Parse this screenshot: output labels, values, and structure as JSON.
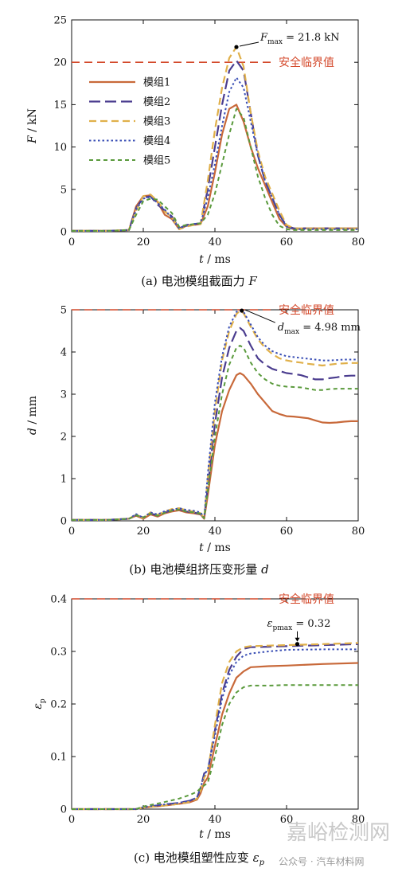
{
  "colors": {
    "module1": "#c8693a",
    "module2": "#4b3d8f",
    "module3": "#e0b04a",
    "module4": "#3a4fb5",
    "module5": "#5a9a3c",
    "safety": "#d44a2c",
    "axis": "#111111"
  },
  "safety_label": "安全临界值",
  "watermark": {
    "big": "嘉峪检测网",
    "small": "公众号 · 汽车材料网"
  },
  "chart_data": [
    {
      "type": "line",
      "caption": "(a) 电池模组截面力 F",
      "xlabel": "t / ms",
      "ylabel": "F / kN",
      "xlim": [
        0,
        80
      ],
      "ylim": [
        0,
        25
      ],
      "xticks": [
        0,
        20,
        40,
        60,
        80
      ],
      "yticks": [
        0,
        5,
        10,
        15,
        20,
        25
      ],
      "safety_threshold": 20,
      "legend_position": "left",
      "annotation": {
        "label": "F",
        "sub": "max",
        "text": "= 21.8 kN",
        "x": 46,
        "y": 21.8
      },
      "series": [
        {
          "name": "模组1",
          "style": "solid",
          "x": [
            0,
            10,
            16,
            18,
            20,
            22,
            24,
            26,
            28,
            30,
            32,
            34,
            36,
            38,
            40,
            42,
            44,
            46,
            48,
            50,
            52,
            54,
            56,
            58,
            60,
            62,
            65,
            70,
            75,
            80
          ],
          "y": [
            0.1,
            0.1,
            0.2,
            3.0,
            4.2,
            4.3,
            3.5,
            2.0,
            1.5,
            0.3,
            0.7,
            0.8,
            0.9,
            3.0,
            7.0,
            11.5,
            14.5,
            15.0,
            13.0,
            10.0,
            7.5,
            5.5,
            3.5,
            1.5,
            0.6,
            0.3,
            0.4,
            0.4,
            0.4,
            0.4
          ]
        },
        {
          "name": "模组2",
          "style": "longdash",
          "x": [
            0,
            10,
            16,
            18,
            20,
            22,
            24,
            26,
            28,
            30,
            32,
            34,
            36,
            38,
            40,
            42,
            44,
            46,
            48,
            50,
            52,
            54,
            56,
            58,
            60,
            62,
            65,
            70,
            75,
            80
          ],
          "y": [
            0.1,
            0.1,
            0.2,
            2.8,
            4.0,
            4.2,
            3.2,
            2.5,
            1.8,
            0.4,
            0.8,
            0.9,
            1.0,
            5.0,
            10.0,
            15.0,
            19.0,
            20.2,
            19.0,
            14.0,
            9.0,
            6.0,
            4.0,
            2.0,
            0.7,
            0.4,
            0.4,
            0.4,
            0.4,
            0.4
          ]
        },
        {
          "name": "模组3",
          "style": "dash",
          "x": [
            0,
            10,
            16,
            18,
            20,
            22,
            24,
            26,
            28,
            30,
            32,
            34,
            36,
            38,
            40,
            42,
            44,
            46,
            48,
            50,
            52,
            54,
            56,
            58,
            60,
            62,
            65,
            70,
            75,
            80
          ],
          "y": [
            0.1,
            0.1,
            0.2,
            2.5,
            4.2,
            4.4,
            3.6,
            2.4,
            1.7,
            0.3,
            0.6,
            0.8,
            0.9,
            6.0,
            12.0,
            17.0,
            20.5,
            21.8,
            19.5,
            14.0,
            9.5,
            6.5,
            4.5,
            2.5,
            0.8,
            0.4,
            0.4,
            0.4,
            0.4,
            0.4
          ]
        },
        {
          "name": "模组4",
          "style": "dot",
          "x": [
            0,
            10,
            16,
            18,
            20,
            22,
            24,
            26,
            28,
            30,
            32,
            34,
            36,
            38,
            40,
            42,
            44,
            46,
            48,
            50,
            52,
            54,
            56,
            58,
            60,
            62,
            65,
            70,
            75,
            80
          ],
          "y": [
            0.1,
            0.1,
            0.2,
            2.6,
            3.9,
            4.1,
            3.4,
            2.6,
            1.6,
            0.4,
            0.7,
            0.9,
            1.0,
            4.0,
            8.0,
            12.5,
            16.5,
            18.2,
            17.0,
            13.0,
            9.0,
            6.0,
            4.0,
            2.0,
            0.6,
            0.3,
            0.3,
            0.3,
            0.3,
            0.3
          ]
        },
        {
          "name": "模组5",
          "style": "shortdash",
          "x": [
            0,
            10,
            16,
            18,
            20,
            22,
            24,
            26,
            28,
            30,
            32,
            34,
            36,
            38,
            40,
            42,
            44,
            46,
            48,
            50,
            52,
            54,
            56,
            58,
            60,
            62,
            65,
            70,
            75,
            80
          ],
          "y": [
            0.1,
            0.1,
            0.2,
            2.0,
            3.6,
            3.9,
            3.8,
            3.0,
            2.2,
            0.6,
            0.8,
            0.9,
            1.0,
            2.0,
            4.5,
            8.0,
            11.5,
            14.5,
            13.5,
            10.0,
            6.5,
            4.0,
            2.0,
            0.7,
            0.3,
            0.2,
            0.2,
            0.2,
            0.2,
            0.2
          ]
        }
      ]
    },
    {
      "type": "line",
      "caption": "(b) 电池模组挤压变形量 d",
      "xlabel": "t / ms",
      "ylabel": "d / mm",
      "xlim": [
        0,
        80
      ],
      "ylim": [
        0,
        5
      ],
      "xticks": [
        0,
        20,
        40,
        60,
        80
      ],
      "yticks": [
        0,
        1,
        2,
        3,
        4,
        5
      ],
      "safety_threshold": 5,
      "annotation": {
        "label": "d",
        "sub": "max",
        "text": "= 4.98 mm",
        "x": 47.5,
        "y": 4.98
      },
      "series": [
        {
          "name": "模组1",
          "style": "solid",
          "x": [
            0,
            10,
            16,
            18,
            20,
            22,
            24,
            26,
            28,
            30,
            32,
            34,
            36,
            37,
            38,
            40,
            42,
            44,
            46,
            47,
            48,
            50,
            52,
            54,
            56,
            58,
            60,
            62,
            64,
            66,
            68,
            70,
            72,
            74,
            76,
            78,
            80
          ],
          "y": [
            0.02,
            0.02,
            0.05,
            0.12,
            0.05,
            0.15,
            0.1,
            0.18,
            0.22,
            0.25,
            0.2,
            0.18,
            0.15,
            0.05,
            0.6,
            1.8,
            2.6,
            3.1,
            3.45,
            3.5,
            3.45,
            3.25,
            3.0,
            2.8,
            2.6,
            2.53,
            2.48,
            2.47,
            2.45,
            2.43,
            2.38,
            2.33,
            2.32,
            2.33,
            2.35,
            2.36,
            2.36
          ]
        },
        {
          "name": "模组2",
          "style": "longdash",
          "x": [
            0,
            10,
            16,
            18,
            20,
            22,
            24,
            26,
            28,
            30,
            32,
            34,
            36,
            37,
            38,
            40,
            42,
            44,
            46,
            47,
            48,
            50,
            52,
            54,
            56,
            58,
            60,
            62,
            64,
            66,
            68,
            70,
            72,
            74,
            76,
            78,
            80
          ],
          "y": [
            0.02,
            0.02,
            0.05,
            0.14,
            0.08,
            0.18,
            0.12,
            0.2,
            0.25,
            0.28,
            0.22,
            0.2,
            0.16,
            0.06,
            0.8,
            2.3,
            3.4,
            4.1,
            4.5,
            4.57,
            4.5,
            4.15,
            3.85,
            3.7,
            3.6,
            3.55,
            3.5,
            3.48,
            3.45,
            3.4,
            3.35,
            3.35,
            3.38,
            3.4,
            3.43,
            3.44,
            3.44
          ]
        },
        {
          "name": "模组3",
          "style": "dash",
          "x": [
            0,
            10,
            16,
            18,
            20,
            22,
            24,
            26,
            28,
            30,
            32,
            34,
            36,
            37,
            38,
            40,
            42,
            44,
            46,
            47,
            48,
            50,
            52,
            54,
            56,
            58,
            60,
            62,
            64,
            66,
            68,
            70,
            72,
            74,
            76,
            78,
            80
          ],
          "y": [
            0.02,
            0.02,
            0.05,
            0.15,
            0.06,
            0.2,
            0.14,
            0.22,
            0.28,
            0.3,
            0.25,
            0.22,
            0.18,
            0.06,
            1.0,
            2.6,
            3.8,
            4.5,
            4.9,
            4.98,
            4.92,
            4.6,
            4.3,
            4.1,
            3.95,
            3.85,
            3.8,
            3.77,
            3.75,
            3.72,
            3.7,
            3.68,
            3.7,
            3.72,
            3.73,
            3.74,
            3.74
          ]
        },
        {
          "name": "模组4",
          "style": "dot",
          "x": [
            0,
            10,
            16,
            18,
            20,
            22,
            24,
            26,
            28,
            30,
            32,
            34,
            36,
            37,
            38,
            40,
            42,
            44,
            46,
            47,
            48,
            50,
            52,
            54,
            56,
            58,
            60,
            62,
            64,
            66,
            68,
            70,
            72,
            74,
            76,
            78,
            80
          ],
          "y": [
            0.02,
            0.02,
            0.05,
            0.16,
            0.07,
            0.2,
            0.15,
            0.23,
            0.26,
            0.3,
            0.26,
            0.24,
            0.2,
            0.07,
            1.1,
            2.8,
            3.9,
            4.6,
            4.95,
            4.98,
            4.95,
            4.65,
            4.35,
            4.15,
            4.02,
            3.95,
            3.9,
            3.88,
            3.86,
            3.84,
            3.82,
            3.8,
            3.8,
            3.81,
            3.82,
            3.82,
            3.82
          ]
        },
        {
          "name": "模组5",
          "style": "shortdash",
          "x": [
            0,
            10,
            16,
            18,
            20,
            22,
            24,
            26,
            28,
            30,
            32,
            34,
            36,
            37,
            38,
            40,
            42,
            44,
            46,
            47,
            48,
            50,
            52,
            54,
            56,
            58,
            60,
            62,
            64,
            66,
            68,
            70,
            72,
            74,
            76,
            78,
            80
          ],
          "y": [
            0.02,
            0.02,
            0.05,
            0.13,
            0.08,
            0.17,
            0.12,
            0.19,
            0.24,
            0.27,
            0.22,
            0.2,
            0.17,
            0.06,
            0.7,
            2.0,
            3.0,
            3.7,
            4.1,
            4.15,
            4.1,
            3.75,
            3.5,
            3.35,
            3.25,
            3.2,
            3.18,
            3.17,
            3.16,
            3.13,
            3.1,
            3.1,
            3.12,
            3.13,
            3.13,
            3.13,
            3.13
          ]
        }
      ]
    },
    {
      "type": "line",
      "caption": "(c) 电池模组塑性应变 ε",
      "caption_sub": "p",
      "xlabel": "t / ms",
      "ylabel": "ε",
      "ylabel_sub": "p",
      "xlim": [
        0,
        80
      ],
      "ylim": [
        0,
        0.4
      ],
      "xticks": [
        0,
        20,
        40,
        60,
        80
      ],
      "yticks": [
        0,
        0.1,
        0.2,
        0.3,
        0.4
      ],
      "safety_threshold": 0.4,
      "annotation": {
        "label": "ε",
        "sub": "pmax",
        "text": "= 0.32",
        "x": 63,
        "y": 0.314
      },
      "series": [
        {
          "name": "模组1",
          "style": "solid",
          "x": [
            0,
            10,
            18,
            20,
            25,
            30,
            33,
            35,
            36,
            37,
            38,
            40,
            42,
            44,
            46,
            48,
            50,
            55,
            60,
            70,
            80
          ],
          "y": [
            0,
            0,
            0,
            0.003,
            0.006,
            0.01,
            0.013,
            0.018,
            0.03,
            0.05,
            0.06,
            0.12,
            0.18,
            0.22,
            0.25,
            0.262,
            0.27,
            0.272,
            0.273,
            0.276,
            0.278
          ]
        },
        {
          "name": "模组2",
          "style": "longdash",
          "x": [
            0,
            10,
            18,
            20,
            25,
            30,
            33,
            35,
            36,
            37,
            38,
            40,
            42,
            44,
            46,
            48,
            50,
            55,
            60,
            70,
            80
          ],
          "y": [
            0,
            0,
            0,
            0.003,
            0.008,
            0.012,
            0.016,
            0.022,
            0.04,
            0.068,
            0.072,
            0.15,
            0.22,
            0.265,
            0.29,
            0.305,
            0.308,
            0.309,
            0.31,
            0.312,
            0.314
          ]
        },
        {
          "name": "模组3",
          "style": "dash",
          "x": [
            0,
            10,
            18,
            20,
            25,
            30,
            33,
            35,
            36,
            37,
            38,
            40,
            42,
            44,
            46,
            48,
            50,
            55,
            60,
            70,
            80
          ],
          "y": [
            0,
            0,
            0,
            0.003,
            0.006,
            0.01,
            0.014,
            0.02,
            0.035,
            0.06,
            0.07,
            0.16,
            0.24,
            0.28,
            0.3,
            0.308,
            0.31,
            0.311,
            0.312,
            0.314,
            0.316
          ]
        },
        {
          "name": "模组4",
          "style": "dot",
          "x": [
            0,
            10,
            18,
            20,
            25,
            30,
            33,
            35,
            36,
            37,
            38,
            40,
            42,
            44,
            46,
            48,
            50,
            55,
            60,
            70,
            80
          ],
          "y": [
            0,
            0,
            0,
            0.004,
            0.008,
            0.012,
            0.016,
            0.022,
            0.04,
            0.066,
            0.075,
            0.14,
            0.21,
            0.255,
            0.28,
            0.292,
            0.296,
            0.3,
            0.303,
            0.304,
            0.304
          ]
        },
        {
          "name": "模组5",
          "style": "shortdash",
          "x": [
            0,
            10,
            18,
            20,
            25,
            30,
            33,
            35,
            36,
            37,
            38,
            40,
            42,
            44,
            46,
            48,
            50,
            55,
            60,
            70,
            80
          ],
          "y": [
            0,
            0,
            0,
            0.005,
            0.012,
            0.02,
            0.027,
            0.033,
            0.04,
            0.045,
            0.05,
            0.1,
            0.16,
            0.2,
            0.222,
            0.232,
            0.235,
            0.235,
            0.236,
            0.236,
            0.236
          ]
        }
      ]
    }
  ]
}
